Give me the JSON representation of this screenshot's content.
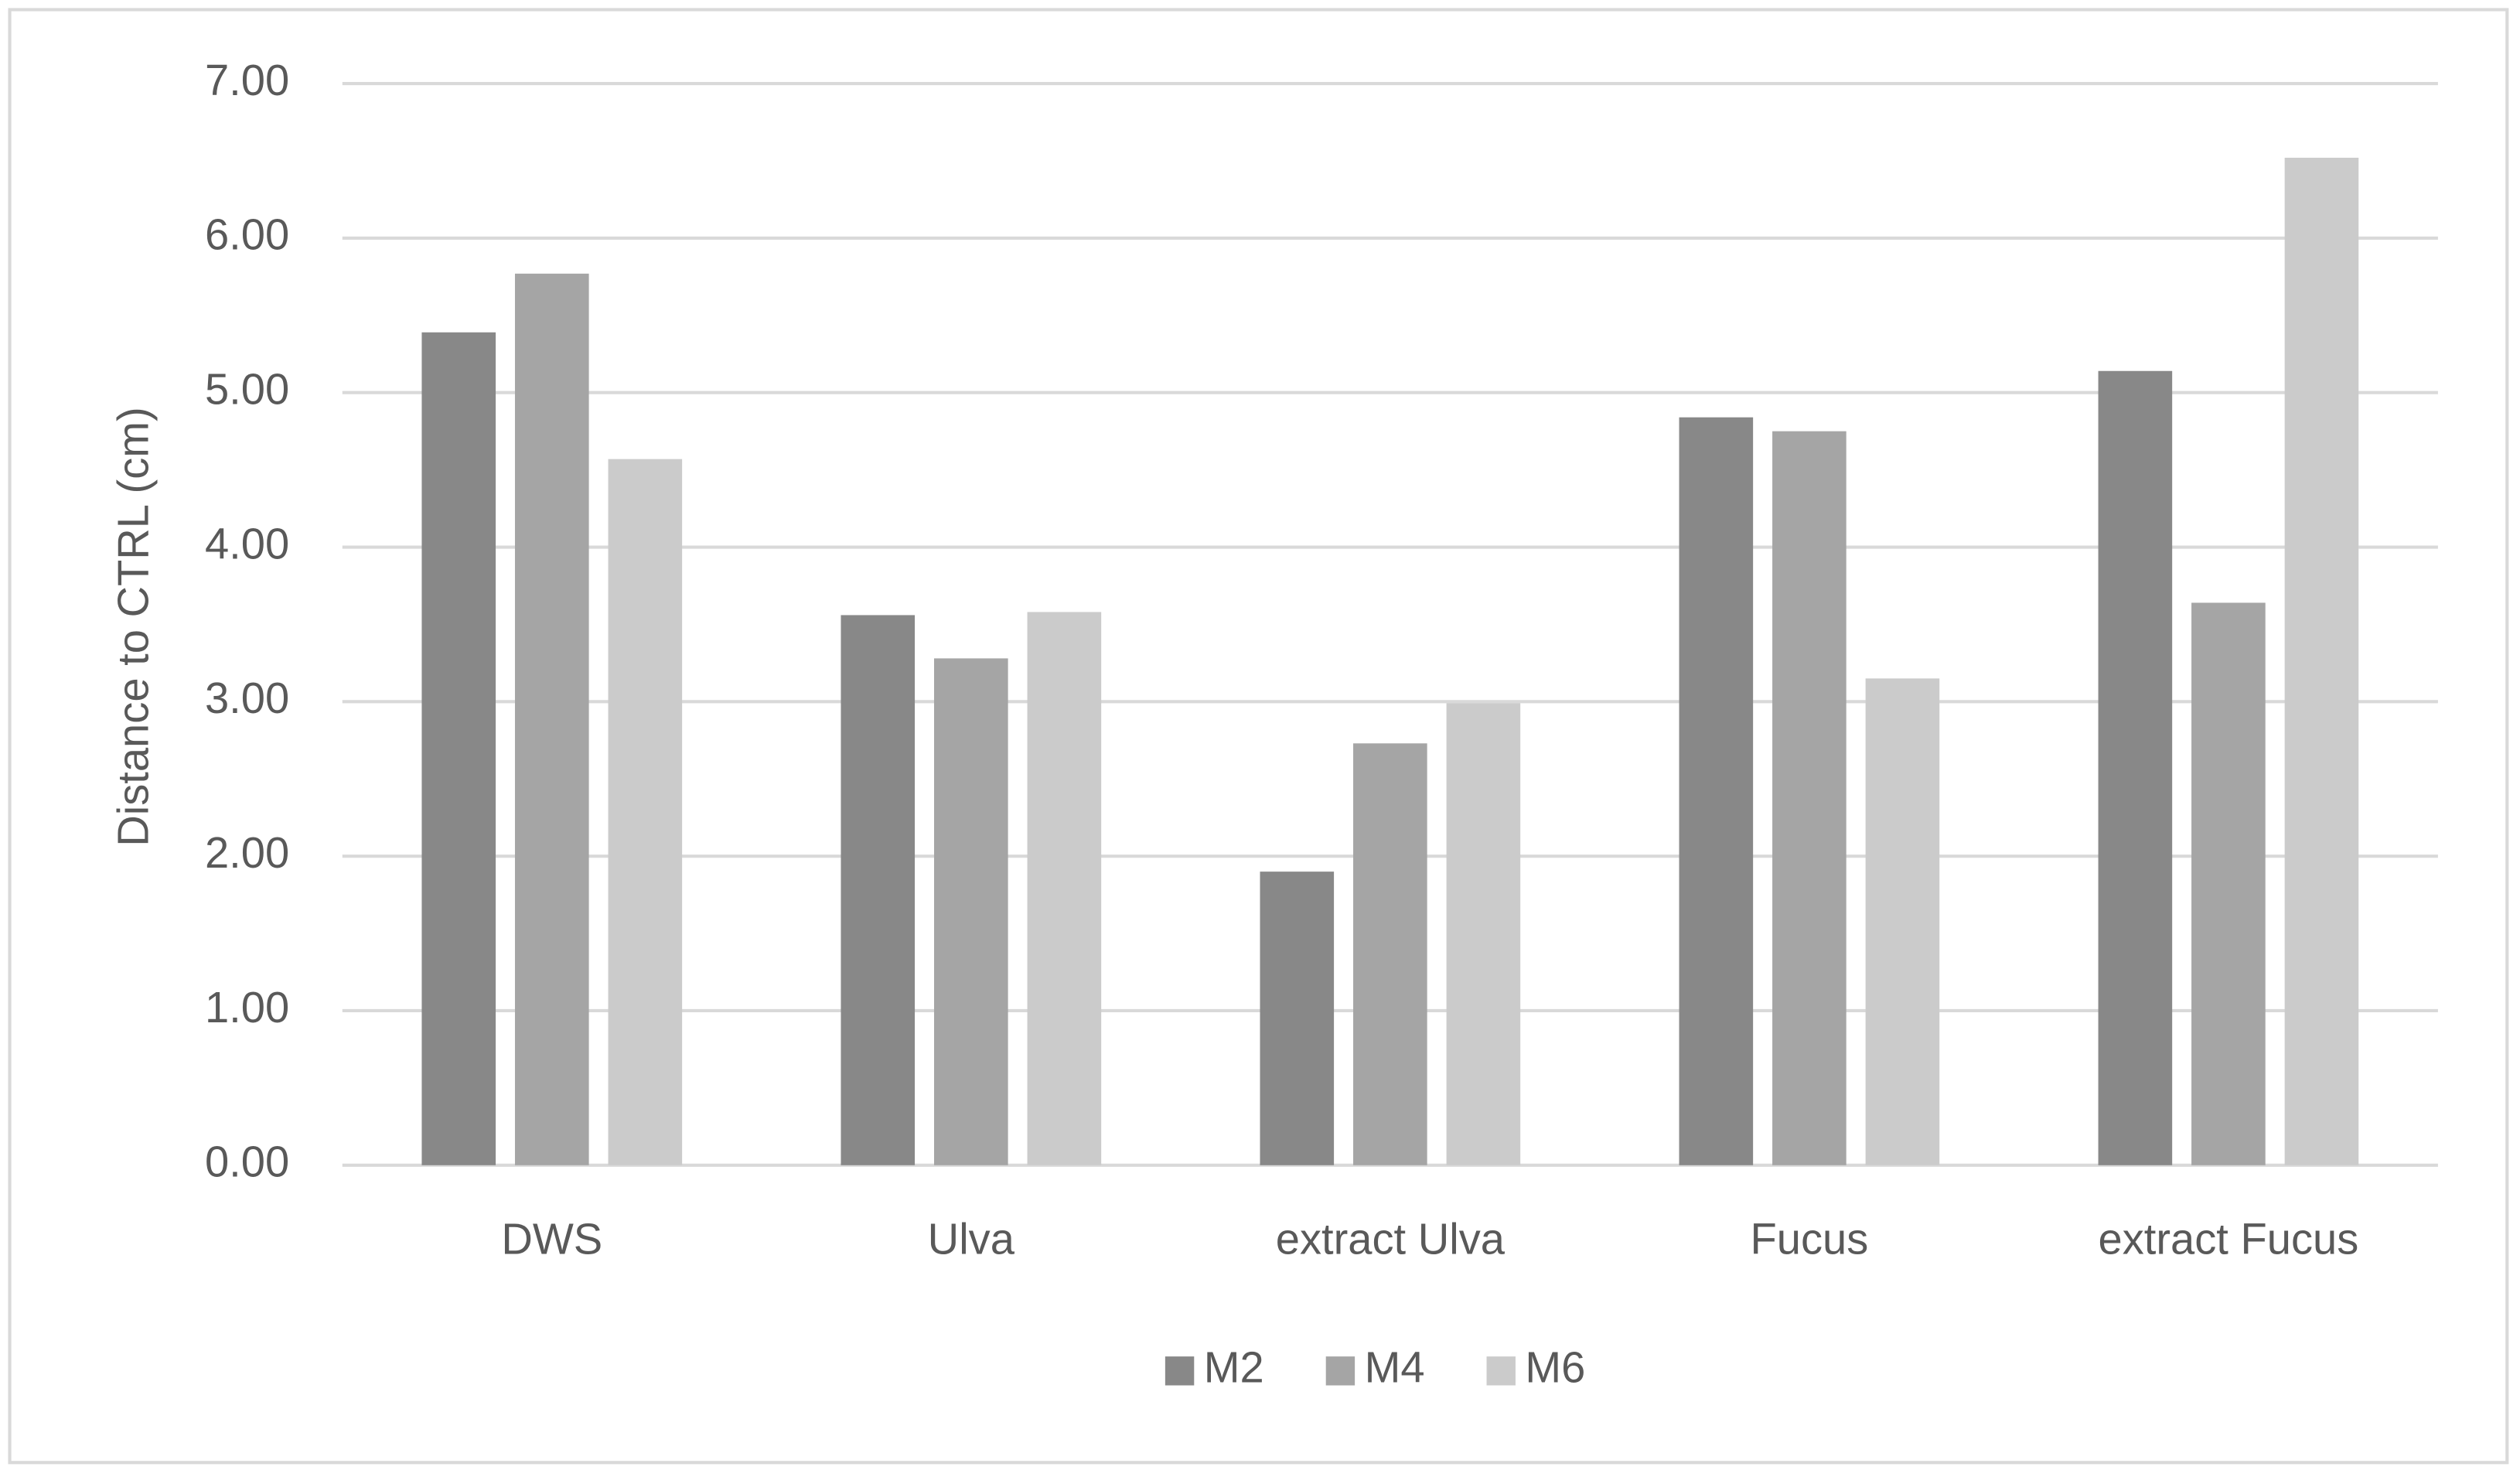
{
  "chart_data": {
    "type": "bar",
    "y_label": "Distance to CTRL (cm)",
    "categories": [
      "DWS",
      "Ulva",
      "extract Ulva",
      "Fucus",
      "extract Fucus"
    ],
    "series": [
      {
        "name": "M2",
        "color": "#888888",
        "values": [
          5.39,
          3.56,
          1.9,
          4.84,
          5.14
        ]
      },
      {
        "name": "M4",
        "color": "#a5a5a5",
        "values": [
          5.77,
          3.28,
          2.73,
          4.75,
          3.64
        ]
      },
      {
        "name": "M6",
        "color": "#cbcbcb",
        "values": [
          4.57,
          3.58,
          2.99,
          3.15,
          6.52
        ]
      }
    ],
    "ylim": [
      0,
      7
    ],
    "yticks": [
      {
        "value": 0,
        "label": "0.00"
      },
      {
        "value": 1,
        "label": "1.00"
      },
      {
        "value": 2,
        "label": "2.00"
      },
      {
        "value": 3,
        "label": "3.00"
      },
      {
        "value": 4,
        "label": "4.00"
      },
      {
        "value": 5,
        "label": "5.00"
      },
      {
        "value": 6,
        "label": "6.00"
      },
      {
        "value": 7,
        "label": "7.00"
      }
    ],
    "grid": true,
    "legend": "bottom"
  }
}
